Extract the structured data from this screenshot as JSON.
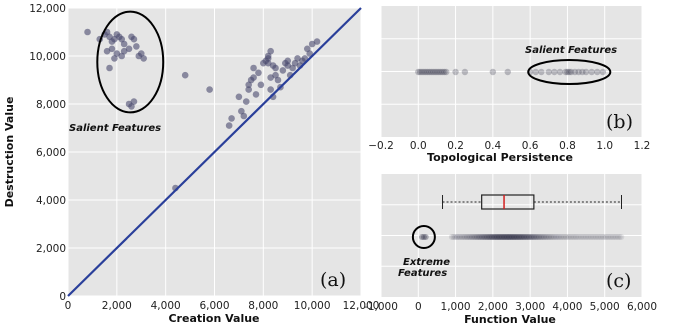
{
  "chart_data": [
    {
      "type": "scatter",
      "panel_label": "(a)",
      "xlabel": "Creation Value",
      "ylabel": "Destruction Value",
      "xlim": [
        0,
        12000
      ],
      "ylim": [
        0,
        12000
      ],
      "xticks": [
        "0",
        "2,000",
        "4,000",
        "6,000",
        "8,000",
        "10,000",
        "12,000"
      ],
      "yticks": [
        "0",
        "2,000",
        "4,000",
        "6,000",
        "8,000",
        "10,000",
        "12,000"
      ],
      "grid": true,
      "diagonal": {
        "from": [
          0,
          0
        ],
        "to": [
          12000,
          12000
        ]
      },
      "annotation": "Salient Features",
      "annotation_ellipse": {
        "cx": 2550,
        "cy": 9750,
        "rx": 1350,
        "ry": 2100
      },
      "points": [
        [
          800,
          11000
        ],
        [
          1300,
          10700
        ],
        [
          1500,
          10900
        ],
        [
          1600,
          11000
        ],
        [
          1700,
          10800
        ],
        [
          1800,
          10600
        ],
        [
          1900,
          10700
        ],
        [
          2000,
          10900
        ],
        [
          2100,
          10800
        ],
        [
          2200,
          10700
        ],
        [
          1600,
          10200
        ],
        [
          1800,
          10300
        ],
        [
          2000,
          10100
        ],
        [
          2200,
          10000
        ],
        [
          1700,
          9500
        ],
        [
          1900,
          9900
        ],
        [
          2300,
          10500
        ],
        [
          2500,
          10300
        ],
        [
          2600,
          10800
        ],
        [
          2700,
          10700
        ],
        [
          2800,
          10400
        ],
        [
          2900,
          10000
        ],
        [
          3000,
          10100
        ],
        [
          3100,
          9900
        ],
        [
          2500,
          8000
        ],
        [
          2600,
          7900
        ],
        [
          2700,
          8100
        ],
        [
          2300,
          10200
        ],
        [
          4400,
          4500
        ],
        [
          4800,
          9200
        ],
        [
          5800,
          8600
        ],
        [
          6600,
          7100
        ],
        [
          6700,
          7400
        ],
        [
          7000,
          8300
        ],
        [
          7100,
          7700
        ],
        [
          7200,
          7500
        ],
        [
          7300,
          8100
        ],
        [
          7400,
          8600
        ],
        [
          7500,
          9000
        ],
        [
          7600,
          9500
        ],
        [
          7700,
          8400
        ],
        [
          7800,
          9300
        ],
        [
          7900,
          8800
        ],
        [
          8000,
          9700
        ],
        [
          8100,
          9800
        ],
        [
          8200,
          9900
        ],
        [
          8200,
          10000
        ],
        [
          8300,
          9100
        ],
        [
          8300,
          8600
        ],
        [
          8400,
          9600
        ],
        [
          8400,
          8300
        ],
        [
          8500,
          9200
        ],
        [
          8500,
          9500
        ],
        [
          8600,
          9000
        ],
        [
          8700,
          8700
        ],
        [
          8800,
          9400
        ],
        [
          8900,
          9700
        ],
        [
          9000,
          9800
        ],
        [
          9000,
          9600
        ],
        [
          9100,
          9200
        ],
        [
          9200,
          9500
        ],
        [
          9300,
          9700
        ],
        [
          9400,
          9900
        ],
        [
          9500,
          9600
        ],
        [
          9600,
          9800
        ],
        [
          9700,
          9900
        ],
        [
          9800,
          10300
        ],
        [
          9900,
          10100
        ],
        [
          10000,
          10500
        ],
        [
          10200,
          10600
        ],
        [
          8300,
          10200
        ],
        [
          8200,
          9700
        ],
        [
          7600,
          9100
        ],
        [
          7400,
          8800
        ]
      ]
    },
    {
      "type": "scatter",
      "panel_label": "(b)",
      "xlabel": "Topological Persistence",
      "xlim": [
        -0.2,
        1.2
      ],
      "xticks": [
        "−0.2",
        "0.0",
        "0.2",
        "0.4",
        "0.6",
        "0.8",
        "1.0",
        "1.2"
      ],
      "grid": true,
      "annotation": "Salient Features",
      "annotation_ellipse": {
        "cx": 0.81,
        "rx": 0.22
      },
      "points": [
        0.0,
        0.01,
        0.02,
        0.03,
        0.04,
        0.05,
        0.06,
        0.07,
        0.08,
        0.09,
        0.1,
        0.11,
        0.12,
        0.13,
        0.14,
        0.15,
        0.2,
        0.25,
        0.4,
        0.48,
        0.6,
        0.63,
        0.66,
        0.7,
        0.73,
        0.76,
        0.79,
        0.8,
        0.81,
        0.82,
        0.84,
        0.86,
        0.88,
        0.9,
        0.93,
        0.96,
        0.99
      ]
    },
    {
      "type": "boxplot",
      "panel_label": "(c)",
      "xlabel": "Function Value",
      "xlim": [
        -1000,
        6000
      ],
      "xticks": [
        "-1,000",
        "0",
        "1,000",
        "2,000",
        "3,000",
        "4,000",
        "5,000",
        "6,000"
      ],
      "grid": true,
      "box": {
        "whisker_low": 650,
        "q1": 1700,
        "median": 2300,
        "q3": 3100,
        "whisker_high": 5450
      },
      "annotation": "Extreme Features",
      "outliers": [
        100,
        150,
        200
      ],
      "strip_range": [
        900,
        5450
      ]
    }
  ]
}
